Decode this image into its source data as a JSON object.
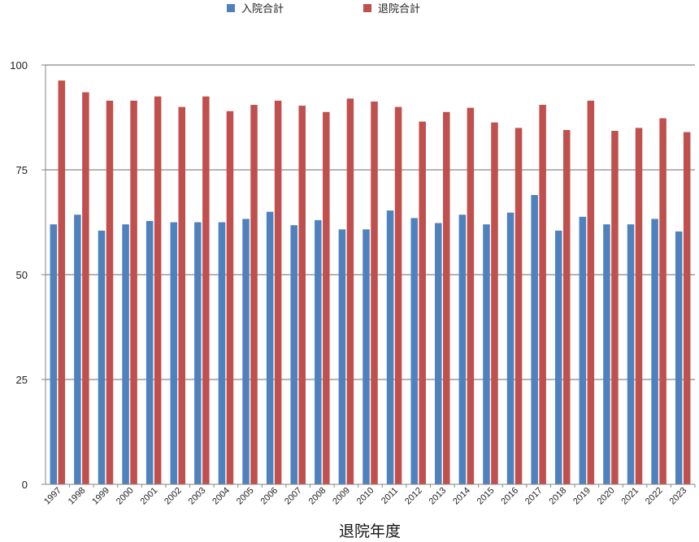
{
  "chart_data": {
    "type": "bar",
    "categories": [
      "1997",
      "1998",
      "1999",
      "2000",
      "2001",
      "2002",
      "2003",
      "2004",
      "2005",
      "2006",
      "2007",
      "2008",
      "2009",
      "2010",
      "2011",
      "2012",
      "2013",
      "2014",
      "2015",
      "2016",
      "2017",
      "2018",
      "2019",
      "2020",
      "2021",
      "2022",
      "2023"
    ],
    "series": [
      {
        "name": "入院合計",
        "color": "#4f81bd",
        "values": [
          62.0,
          64.3,
          60.5,
          62.0,
          62.8,
          62.5,
          62.5,
          62.5,
          63.3,
          65.0,
          61.8,
          63.0,
          60.8,
          60.8,
          65.3,
          63.5,
          62.3,
          64.3,
          62.0,
          64.8,
          69.0,
          60.5,
          63.8,
          62.0,
          62.0,
          63.3,
          60.3
        ]
      },
      {
        "name": "退院合計",
        "color": "#c0504d",
        "values": [
          96.3,
          93.5,
          91.5,
          91.5,
          92.5,
          90.0,
          92.5,
          89.0,
          90.5,
          91.5,
          90.3,
          88.8,
          92.0,
          91.3,
          90.0,
          86.5,
          88.8,
          89.8,
          86.3,
          85.0,
          90.5,
          84.5,
          91.5,
          84.3,
          85.0,
          87.3,
          84.0
        ]
      }
    ],
    "xlabel": "退院年度",
    "ylabel": "",
    "ylim": [
      0,
      100
    ],
    "yticks": [
      0,
      25,
      50,
      75,
      100
    ],
    "grid": true,
    "legend_position": "top-center"
  }
}
